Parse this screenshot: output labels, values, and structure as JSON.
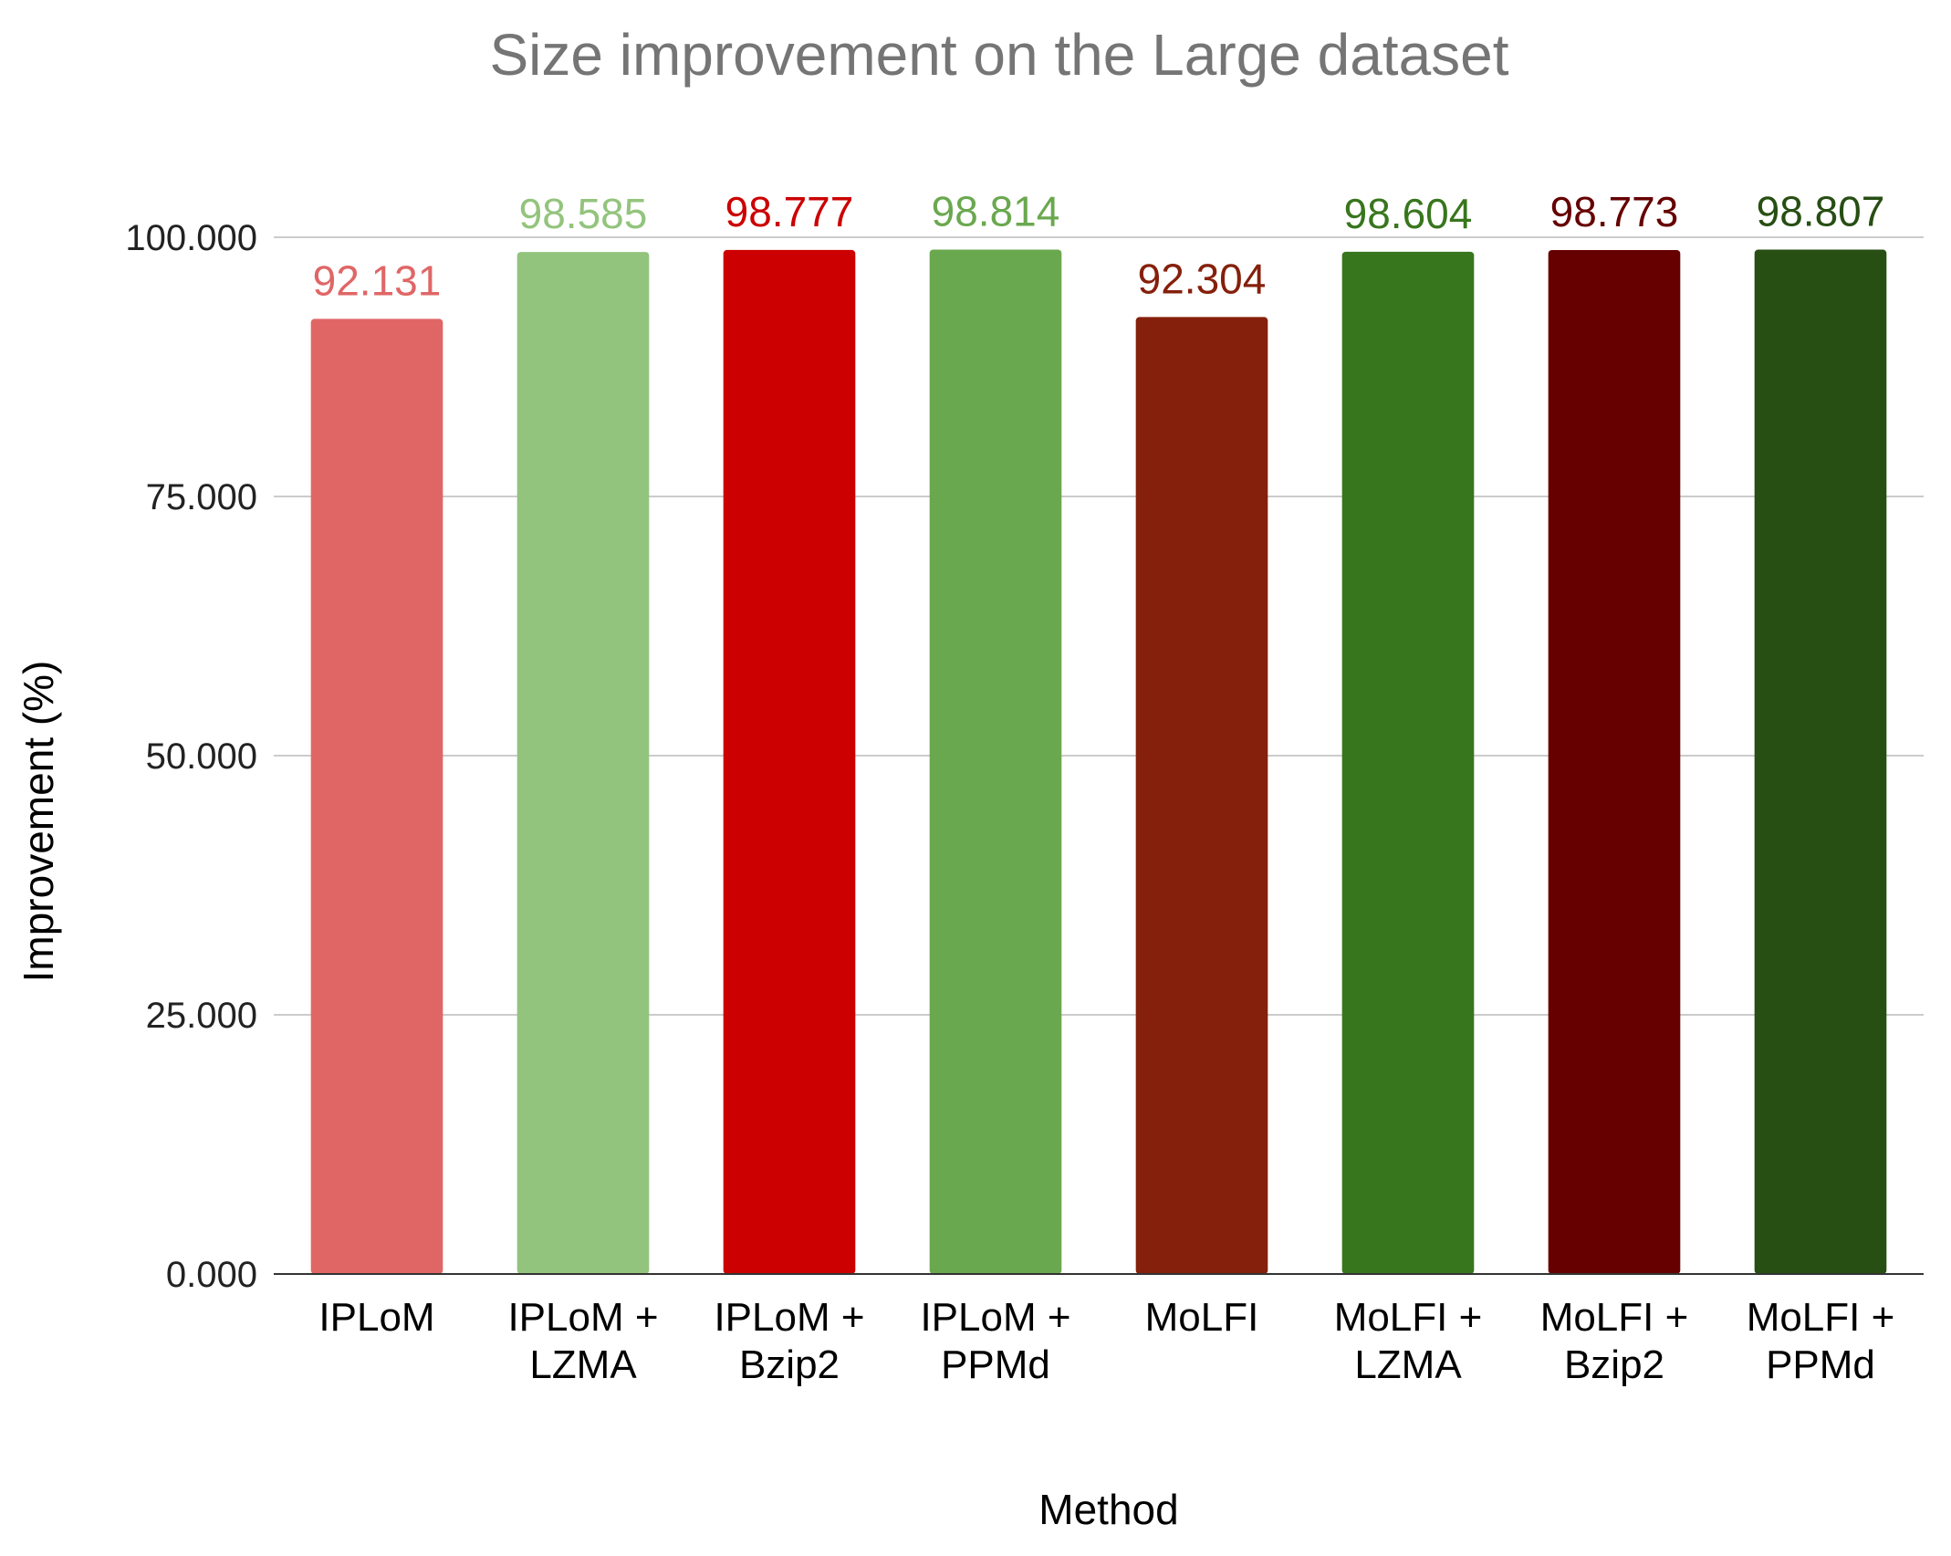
{
  "chart_data": {
    "type": "bar",
    "title": "Size improvement on the Large dataset",
    "xlabel": "Method",
    "ylabel": "Improvement (%)",
    "ylim": [
      0,
      100
    ],
    "yticks": [
      {
        "value": 0,
        "label": "0.000"
      },
      {
        "value": 25,
        "label": "25.000"
      },
      {
        "value": 50,
        "label": "50.000"
      },
      {
        "value": 75,
        "label": "75.000"
      },
      {
        "value": 100,
        "label": "100.000"
      }
    ],
    "grid": true,
    "legend": "none",
    "categories": [
      {
        "lines": [
          "IPLoM"
        ]
      },
      {
        "lines": [
          "IPLoM +",
          "LZMA"
        ]
      },
      {
        "lines": [
          "IPLoM +",
          "Bzip2"
        ]
      },
      {
        "lines": [
          "IPLoM +",
          "PPMd"
        ]
      },
      {
        "lines": [
          "MoLFI"
        ]
      },
      {
        "lines": [
          "MoLFI +",
          "LZMA"
        ]
      },
      {
        "lines": [
          "MoLFI +",
          "Bzip2"
        ]
      },
      {
        "lines": [
          "MoLFI +",
          "PPMd"
        ]
      }
    ],
    "values": [
      92.131,
      98.585,
      98.777,
      98.814,
      92.304,
      98.604,
      98.773,
      98.807
    ],
    "value_labels": [
      "92.131",
      "98.585",
      "98.777",
      "98.814",
      "92.304",
      "98.604",
      "98.773",
      "98.807"
    ],
    "colors": [
      "#e06666",
      "#93c47d",
      "#cc0000",
      "#6aa84f",
      "#85200c",
      "#38761d",
      "#660000",
      "#274e13"
    ]
  }
}
